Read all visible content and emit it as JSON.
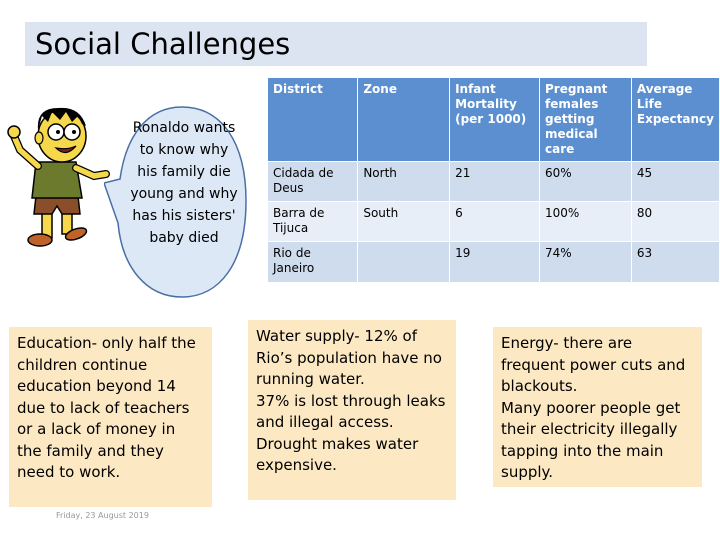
{
  "title": "Social Challenges",
  "bubble": {
    "text": "Ronaldo wants to know why his family die young and why has his sisters' baby died"
  },
  "table": {
    "headers": [
      "District",
      "Zone",
      "Infant Mortality (per 1000)",
      "Pregnant females getting medical care",
      "Average Life Expectancy"
    ],
    "rows": [
      [
        "Cidada de Deus",
        "North",
        "21",
        "60%",
        "45"
      ],
      [
        "Barra de Tijuca",
        "South",
        "6",
        "100%",
        "80"
      ],
      [
        "Rio de Janeiro",
        "",
        "19",
        "74%",
        "63"
      ]
    ]
  },
  "notes": {
    "education": "Education- only half the children continue education beyond 14 due to lack of teachers or a lack of money in the family and they need to work.",
    "water": "Water supply- 12% of Rio’s population have no running water.\n 37% is lost through leaks and illegal access.\nDrought makes water expensive.",
    "energy": "Energy- there are frequent power cuts and blackouts.\nMany poorer people get their electricity illegally tapping into the main supply."
  },
  "footer": {
    "date": "Friday, 23 August 2019"
  },
  "colors": {
    "title_bg": "#dbe4f0",
    "table_header": "#5b8fd0",
    "note_bg": "#fce9c4"
  }
}
